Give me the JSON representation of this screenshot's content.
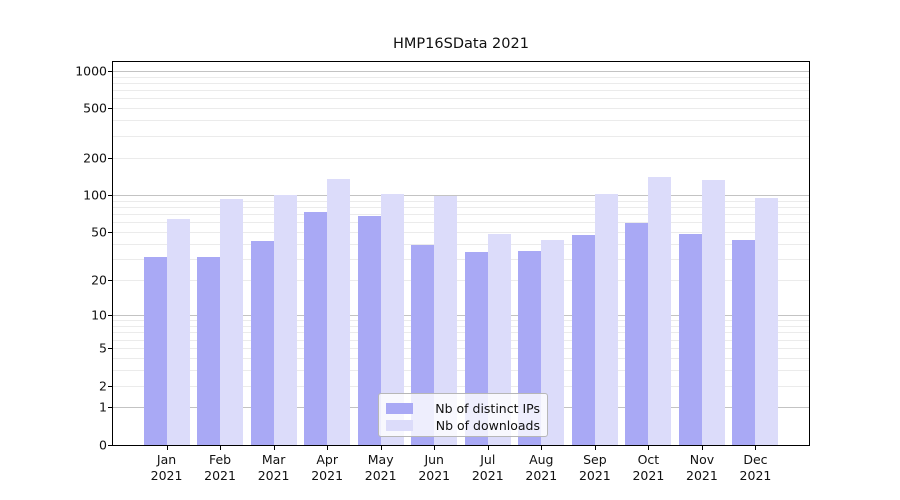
{
  "title": "HMP16SData 2021",
  "chart_data": {
    "type": "bar",
    "title": "HMP16SData 2021",
    "categories": [
      "Jan 2021",
      "Feb 2021",
      "Mar 2021",
      "Apr 2021",
      "May 2021",
      "Jun 2021",
      "Jul 2021",
      "Aug 2021",
      "Sep 2021",
      "Oct 2021",
      "Nov 2021",
      "Dec 2021"
    ],
    "x_tick_line1": [
      "Jan",
      "Feb",
      "Mar",
      "Apr",
      "May",
      "Jun",
      "Jul",
      "Aug",
      "Sep",
      "Oct",
      "Nov",
      "Dec"
    ],
    "x_tick_line2": [
      "2021",
      "2021",
      "2021",
      "2021",
      "2021",
      "2021",
      "2021",
      "2021",
      "2021",
      "2021",
      "2021",
      "2021"
    ],
    "series": [
      {
        "name": "Nb of distinct IPs",
        "color": "#a9a9f5",
        "values": [
          31,
          31,
          42,
          73,
          67,
          39,
          34,
          35,
          47,
          59,
          48,
          43
        ]
      },
      {
        "name": "Nb of downloads",
        "color": "#dcdcfa",
        "values": [
          64,
          93,
          101,
          134,
          102,
          99,
          48,
          43,
          102,
          139,
          132,
          94
        ]
      }
    ],
    "y_scale": "log10(value+1)",
    "ylim": [
      0,
      1178
    ],
    "y_tick_values": [
      0,
      1,
      2,
      5,
      10,
      20,
      50,
      100,
      200,
      500,
      1000
    ],
    "y_tick_labels": [
      "0",
      "1",
      "2",
      "5",
      "10",
      "20",
      "50",
      "100",
      "200",
      "500",
      "1000"
    ],
    "major_gridline_values": [
      1,
      10,
      100,
      1000
    ],
    "minor_gridline_values": [
      2,
      3,
      4,
      5,
      6,
      7,
      8,
      9,
      20,
      30,
      40,
      50,
      60,
      70,
      80,
      90,
      200,
      300,
      400,
      500,
      600,
      700,
      800,
      900
    ],
    "grid_on": true,
    "legend_position": "bottom-center",
    "colors": {
      "major_gridline": "#c3c3c3",
      "minor_gridline": "#ebebeb",
      "spine": "#000000",
      "text": "#111111",
      "background": "#ffffff"
    }
  }
}
